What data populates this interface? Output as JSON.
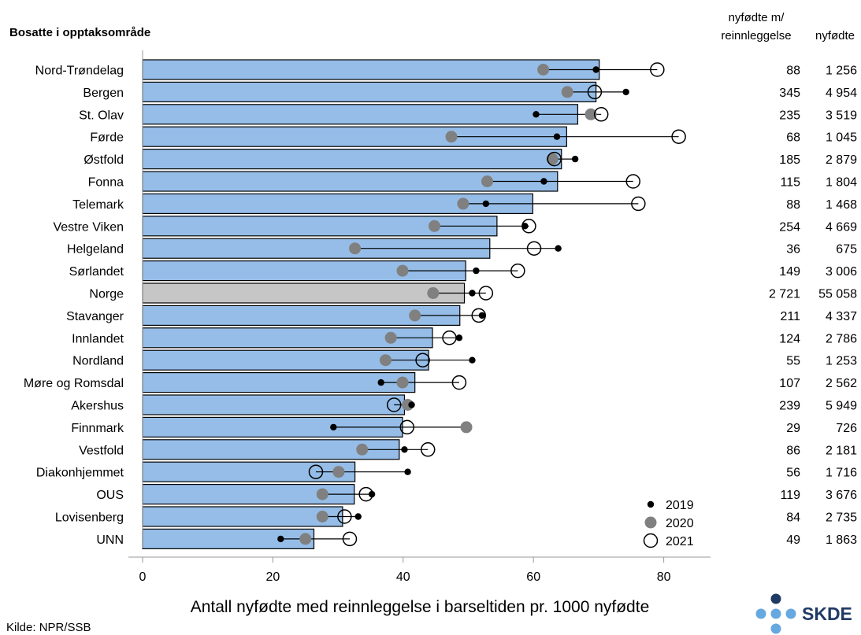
{
  "chart_data": {
    "type": "bar",
    "title": "Bosatte i opptaksområde",
    "xlabel": "Antall nyfødte med reinnleggelse i barseltiden pr. 1000 nyfødte",
    "xlim": [
      0,
      100
    ],
    "xticks": [
      0,
      20,
      40,
      60,
      80
    ],
    "column_headers": {
      "readmitted_line1": "nyfødte m/",
      "readmitted_line2": "reinnleggelse",
      "births": "nyfødte"
    },
    "legend": {
      "placement": "bottom-right",
      "entries": [
        "2019",
        "2020",
        "2021"
      ]
    },
    "colors": {
      "bar": "#95bde8",
      "bar_highlight": "#c6c6c6",
      "y2019": "#000000",
      "y2020": "#808080",
      "y2021": "#ffffff"
    },
    "highlight_category": "Norge",
    "source": "Kilde: NPR/SSB",
    "logo_text": "SKDE",
    "categories": [
      "Nord-Trøndelag",
      "Bergen",
      "St. Olav",
      "Førde",
      "Østfold",
      "Fonna",
      "Telemark",
      "Vestre Viken",
      "Helgeland",
      "Sørlandet",
      "Norge",
      "Stavanger",
      "Innlandet",
      "Nordland",
      "Møre og Romsdal",
      "Akershus",
      "Finnmark",
      "Vestfold",
      "Diakonhjemmet",
      "OUS",
      "Lovisenberg",
      "UNN"
    ],
    "bar_values": [
      70.1,
      69.6,
      66.8,
      65.1,
      64.3,
      63.7,
      59.9,
      54.4,
      53.3,
      49.6,
      49.4,
      48.7,
      44.5,
      43.9,
      41.8,
      40.2,
      39.9,
      39.4,
      32.6,
      32.5,
      30.7,
      26.3
    ],
    "series": [
      {
        "name": "2019",
        "values": [
          69.6,
          74.2,
          60.4,
          63.6,
          66.4,
          61.6,
          52.7,
          58.7,
          63.8,
          51.2,
          50.6,
          52.1,
          48.6,
          50.6,
          36.6,
          41.3,
          29.3,
          40.2,
          40.7,
          35.2,
          33.1,
          21.2
        ]
      },
      {
        "name": "2020",
        "values": [
          61.5,
          65.2,
          68.8,
          47.4,
          62.9,
          52.9,
          49.2,
          44.8,
          32.6,
          39.9,
          44.6,
          41.8,
          38.1,
          37.3,
          39.9,
          40.7,
          49.7,
          33.7,
          30.1,
          27.6,
          27.6,
          25.0
        ]
      },
      {
        "name": "2021",
        "values": [
          79.0,
          69.4,
          70.4,
          82.3,
          63.2,
          75.3,
          76.1,
          59.3,
          60.1,
          57.6,
          52.7,
          51.6,
          47.1,
          43.0,
          48.6,
          38.6,
          40.6,
          43.8,
          26.6,
          34.3,
          31.0,
          31.8
        ]
      }
    ],
    "readmitted": [
      "88",
      "345",
      "235",
      "68",
      "185",
      "115",
      "88",
      "254",
      "36",
      "149",
      "2 721",
      "211",
      "124",
      "55",
      "107",
      "239",
      "29",
      "86",
      "56",
      "119",
      "84",
      "49"
    ],
    "births": [
      "1 256",
      "4 954",
      "3 519",
      "1 045",
      "2 879",
      "1 804",
      "1 468",
      "4 669",
      "675",
      "3 006",
      "55 058",
      "4 337",
      "2 786",
      "1 253",
      "2 562",
      "5 949",
      "726",
      "2 181",
      "1 716",
      "3 676",
      "2 735",
      "1 863"
    ]
  }
}
